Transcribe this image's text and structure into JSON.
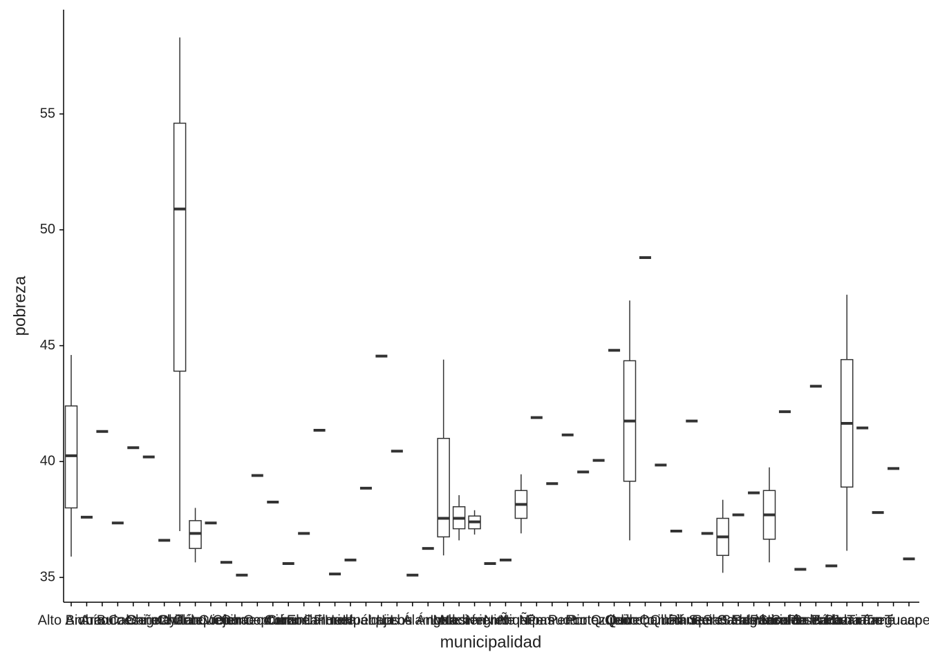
{
  "chart_data": {
    "type": "boxplot",
    "x_label": "municipalidad",
    "y_label": "pobreza",
    "categories": [
      "Alto Biobío",
      "Antuco",
      "Arauco",
      "Bulnes",
      "Cabrero",
      "Cañete",
      "Chiguayante",
      "Chillán",
      "Chillán Viejo",
      "Cobquecura",
      "Coelemu",
      "Coihueco",
      "Concepción",
      "Contulmo",
      "Coronel",
      "Curanilahue",
      "El Carmen",
      "Florida",
      "Hualpén",
      "Hualqui",
      "Laja",
      "Lebu",
      "Los Álamos",
      "Los Ángeles",
      "Lota",
      "Mulchén",
      "Nacimiento",
      "Negrete",
      "Ninhue",
      "Ñiquén",
      "Ñipas",
      "Pemuco",
      "Penco",
      "Pinto",
      "Portezuelo",
      "Quilaco",
      "Quilleco",
      "Quinchamalí",
      "Quillón",
      "Quirihue",
      "Ránquil",
      "Rere",
      "San Carlos",
      "San Fabián",
      "San Ignacio",
      "San Nicolás",
      "San Pedro de la Paz",
      "San Rosendo",
      "Santa Bárbara",
      "Santa Juana",
      "Talcahuano",
      "Tirúa",
      "Tomé",
      "Treguaco",
      "Tucapel"
    ],
    "boxes": [
      {
        "low": 35.9,
        "q1": 38.0,
        "median": 40.25,
        "q3": 42.4,
        "high": 44.6
      },
      {
        "median": 37.6
      },
      {
        "median": 41.3
      },
      {
        "median": 37.35
      },
      {
        "median": 40.6
      },
      {
        "median": 40.2
      },
      {
        "median": 36.6
      },
      {
        "low": 37.0,
        "q1": 43.9,
        "median": 50.9,
        "q3": 54.6,
        "high": 58.3
      },
      {
        "low": 35.65,
        "q1": 36.25,
        "median": 36.9,
        "q3": 37.45,
        "high": 38.0
      },
      {
        "median": 37.35
      },
      {
        "median": 35.65
      },
      {
        "median": 35.1
      },
      {
        "median": 39.4
      },
      {
        "median": 38.25
      },
      {
        "median": 35.6
      },
      {
        "median": 36.9
      },
      {
        "median": 41.35
      },
      {
        "median": 35.15
      },
      {
        "median": 35.75
      },
      {
        "median": 38.85
      },
      {
        "median": 44.55
      },
      {
        "median": 40.45
      },
      {
        "median": 35.1
      },
      {
        "median": 36.25
      },
      {
        "low": 35.95,
        "q1": 36.75,
        "median": 37.55,
        "q3": 41.0,
        "high": 44.4
      },
      {
        "low": 36.6,
        "q1": 37.1,
        "median": 37.55,
        "q3": 38.05,
        "high": 38.55
      },
      {
        "low": 36.85,
        "q1": 37.1,
        "median": 37.4,
        "q3": 37.65,
        "high": 37.9
      },
      {
        "median": 35.6
      },
      {
        "median": 35.75
      },
      {
        "low": 36.9,
        "q1": 37.55,
        "median": 38.15,
        "q3": 38.75,
        "high": 39.45
      },
      {
        "median": 41.9
      },
      {
        "median": 39.05
      },
      {
        "median": 41.15
      },
      {
        "median": 39.55
      },
      {
        "median": 40.05
      },
      {
        "median": 44.8
      },
      {
        "low": 36.6,
        "q1": 39.15,
        "median": 41.75,
        "q3": 44.35,
        "high": 46.95
      },
      {
        "median": 48.8
      },
      {
        "median": 39.85
      },
      {
        "median": 37.0
      },
      {
        "median": 41.75
      },
      {
        "median": 36.9
      },
      {
        "low": 35.2,
        "q1": 35.95,
        "median": 36.75,
        "q3": 37.55,
        "high": 38.35
      },
      {
        "median": 37.7
      },
      {
        "median": 38.65
      },
      {
        "low": 35.65,
        "q1": 36.65,
        "median": 37.7,
        "q3": 38.75,
        "high": 39.75
      },
      {
        "median": 42.15
      },
      {
        "median": 35.35
      },
      {
        "median": 43.25
      },
      {
        "median": 35.5
      },
      {
        "low": 36.15,
        "q1": 38.9,
        "median": 41.65,
        "q3": 44.4,
        "high": 47.2
      },
      {
        "median": 41.45
      },
      {
        "median": 37.8
      },
      {
        "median": 39.7
      },
      {
        "median": 35.8
      }
    ],
    "color": "#333333",
    "ylim": [
      33.93,
      59.5
    ],
    "yticks": [
      35,
      40,
      45,
      50,
      55
    ]
  }
}
